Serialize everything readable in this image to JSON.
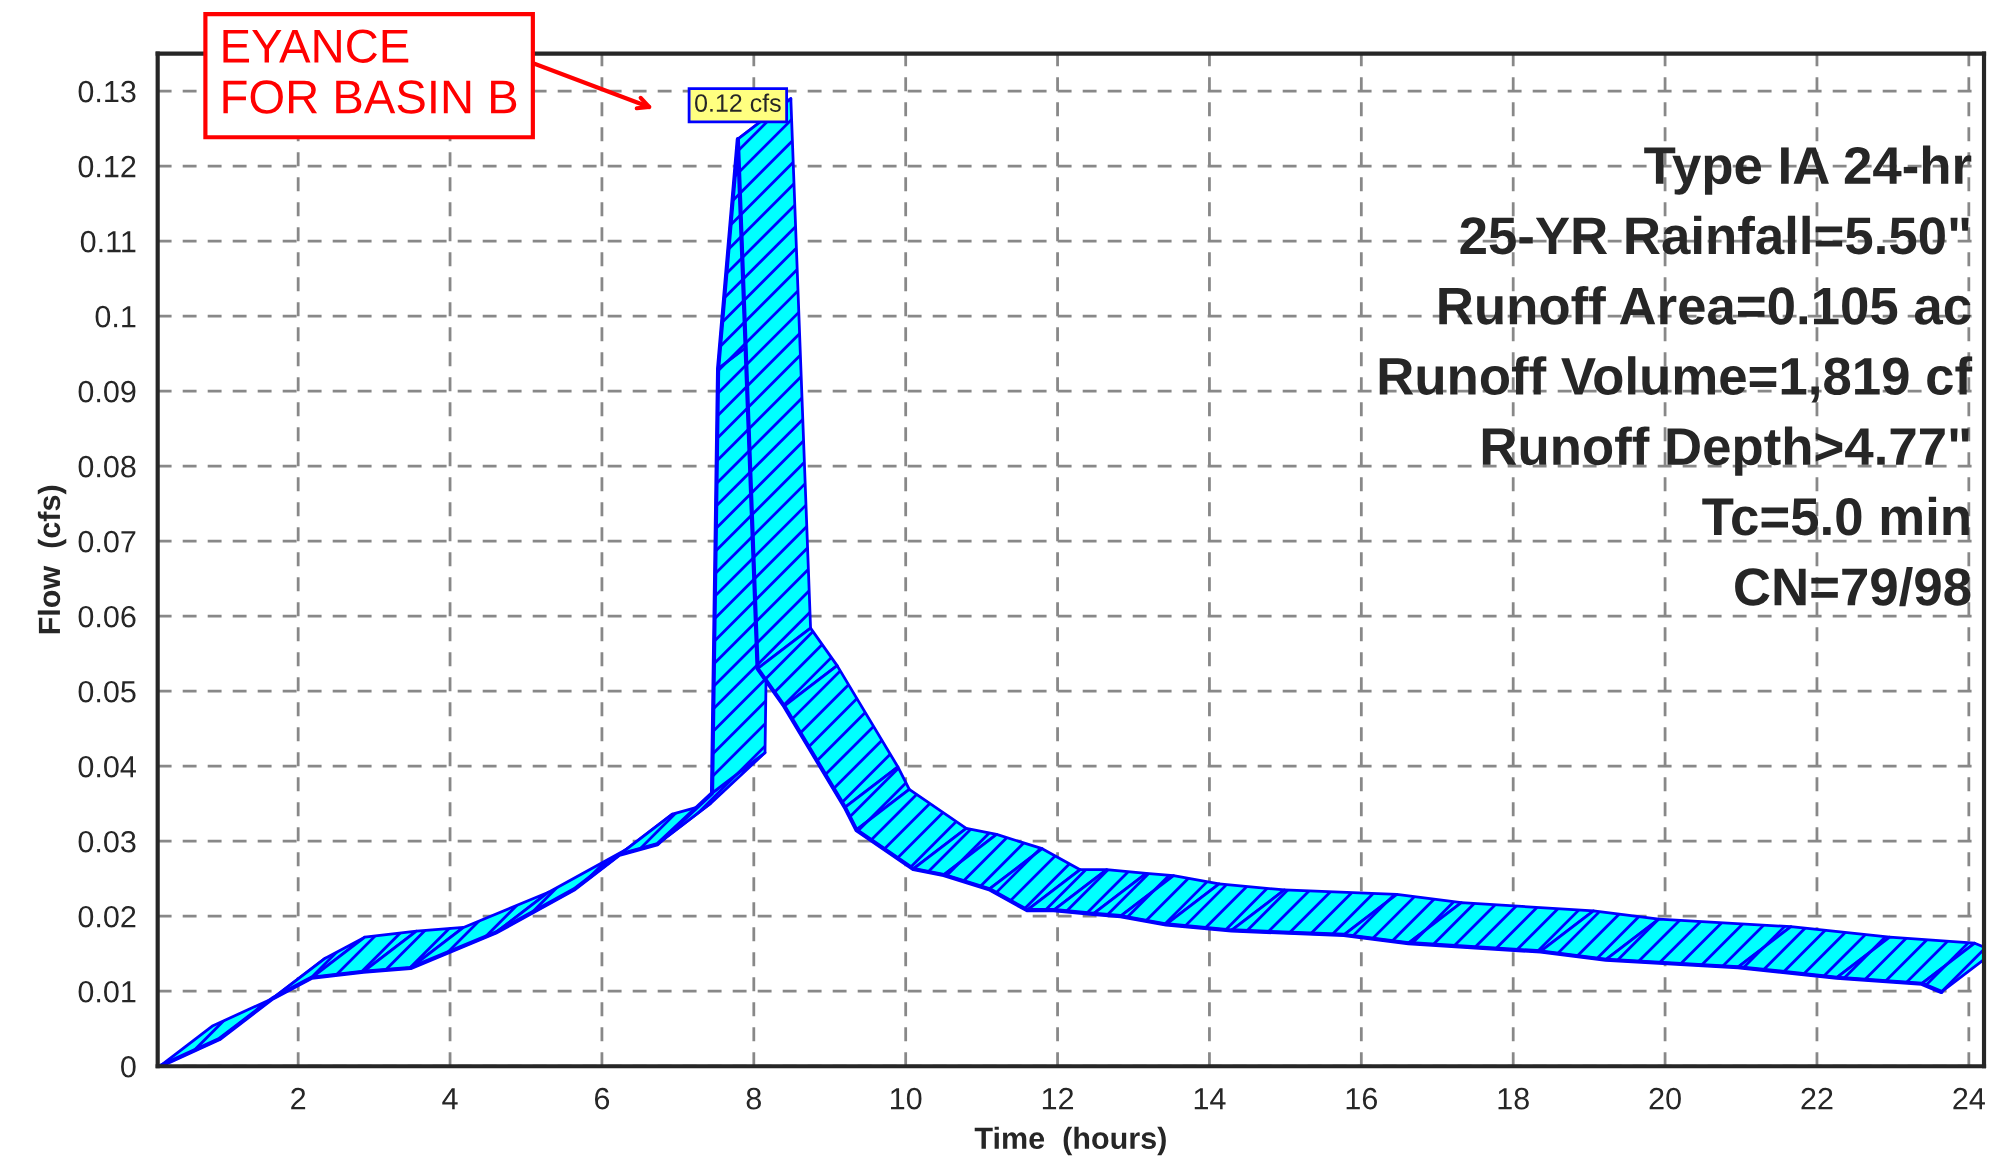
{
  "chart_data": {
    "type": "line",
    "xlabel": "Time  (hours)",
    "ylabel": "Flow  (cfs)",
    "x": [
      0.18,
      0.96,
      1.66,
      2.18,
      2.86,
      3.48,
      4.6,
      5.64,
      6.23,
      6.73,
      7.45,
      7.53,
      7.79,
      8.05,
      8.4,
      9.2,
      9.35,
      10.1,
      10.5,
      11.1,
      11.6,
      11.95,
      12.47,
      12.83,
      13.43,
      14.29,
      15.77,
      16.62,
      18.36,
      19.22,
      20.96,
      22.26,
      23.38,
      23.64
    ],
    "series": [
      {
        "color": "#0000ff",
        "values": [
          0,
          0.0036,
          0.009,
          0.0118,
          0.0126,
          0.0131,
          0.0178,
          0.0236,
          0.0282,
          0.0296,
          0.0364,
          0.093,
          0.1236,
          0.053,
          0.048,
          0.0345,
          0.0315,
          0.0263,
          0.0255,
          0.0236,
          0.0208,
          0.0208,
          0.0203,
          0.02,
          0.0189,
          0.0181,
          0.0175,
          0.0164,
          0.0153,
          0.0142,
          0.0132,
          0.0118,
          0.011,
          0.0099
        ]
      }
    ],
    "xlim": [
      0.15,
      24.2
    ],
    "xticks": [
      2,
      4,
      6,
      8,
      10,
      12,
      14,
      16,
      18,
      20,
      22,
      24
    ],
    "ylim": [
      0,
      0.135
    ],
    "yticks": [
      0,
      0.01,
      0.02,
      0.03,
      0.04,
      0.05,
      0.06,
      0.07,
      0.08,
      0.09,
      0.1,
      0.11,
      0.12,
      0.13
    ],
    "grid": true,
    "line_style": "solid",
    "annotations": [
      {
        "text": "0.12 cfs",
        "x": 7.79,
        "y": 0.1236
      },
      "Type IA 24-hr\n25-YR Rainfall=5.50\"\nRunoff Area=0.105 ac\nRunoff Volume=1,819 cf\nRunoff Depth>4.77\"\nTc=5.0 min\nCN=79/98",
      "EYANCE\nFOR BASIN B"
    ]
  }
}
